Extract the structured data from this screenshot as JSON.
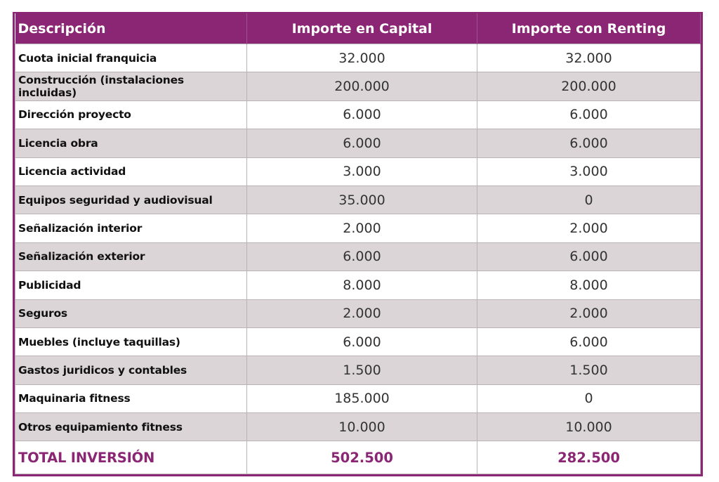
{
  "headers": [
    "Descripción",
    "Importe en Capital",
    "Importe con Renting"
  ],
  "rows": [
    {
      "desc": "Cuota inicial franquicia",
      "capital": "32.000",
      "renting": "32.000"
    },
    {
      "desc": "Construcción (instalaciones incluidas)",
      "capital": "200.000",
      "renting": "200.000"
    },
    {
      "desc": "Dirección proyecto",
      "capital": "6.000",
      "renting": "6.000"
    },
    {
      "desc": "Licencia obra",
      "capital": "6.000",
      "renting": "6.000"
    },
    {
      "desc": "Licencia actividad",
      "capital": "3.000",
      "renting": "3.000"
    },
    {
      "desc": "Equipos seguridad y audiovisual",
      "capital": "35.000",
      "renting": "0"
    },
    {
      "desc": "Señalización interior",
      "capital": "2.000",
      "renting": "2.000"
    },
    {
      "desc": "Señalización exterior",
      "capital": "6.000",
      "renting": "6.000"
    },
    {
      "desc": "Publicidad",
      "capital": "8.000",
      "renting": "8.000"
    },
    {
      "desc": "Seguros",
      "capital": "2.000",
      "renting": "2.000"
    },
    {
      "desc": "Muebles (incluye taquillas)",
      "capital": "6.000",
      "renting": "6.000"
    },
    {
      "desc": "Gastos juridicos y contables",
      "capital": "1.500",
      "renting": "1.500"
    },
    {
      "desc": "Maquinaria fitness",
      "capital": "185.000",
      "renting": "0"
    },
    {
      "desc": "Otros equipamiento fitness",
      "capital": "10.000",
      "renting": "10.000"
    }
  ],
  "total": {
    "desc": "TOTAL INVERSIÓN",
    "capital": "502.500",
    "renting": "282.500"
  },
  "colors": {
    "accent": "#8a2673",
    "stripe": "#dbd5d8"
  }
}
